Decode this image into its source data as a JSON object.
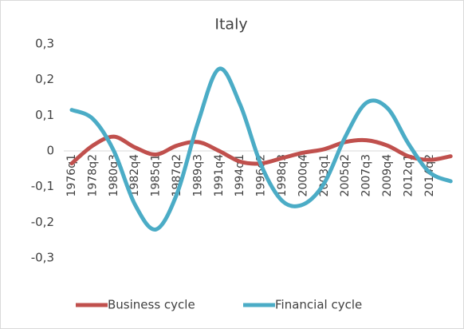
{
  "chart_data": {
    "type": "line",
    "title": "Italy",
    "categories": [
      "1976q1",
      "1978q2",
      "1980q3",
      "1982q4",
      "1985q1",
      "1987q2",
      "1989q3",
      "1991q4",
      "1994q1",
      "1996q2",
      "1998q3",
      "2000q4",
      "2003q1",
      "2005q2",
      "2007q3",
      "2009q4",
      "2012q1",
      "2014q2",
      null
    ],
    "series": [
      {
        "name": "Business cycle",
        "color": "#c0504d",
        "values": [
          -0.035,
          0.015,
          0.04,
          0.01,
          -0.01,
          0.015,
          0.025,
          0.0,
          -0.03,
          -0.035,
          -0.02,
          -0.005,
          0.005,
          0.025,
          0.03,
          0.015,
          -0.015,
          -0.025,
          -0.015
        ]
      },
      {
        "name": "Financial cycle",
        "color": "#4bacc6",
        "values": [
          0.115,
          0.09,
          0.0,
          -0.15,
          -0.22,
          -0.12,
          0.08,
          0.23,
          0.13,
          -0.04,
          -0.14,
          -0.15,
          -0.09,
          0.04,
          0.135,
          0.12,
          0.02,
          -0.06,
          -0.085
        ]
      }
    ],
    "ylim": [
      -0.3,
      0.3
    ],
    "yticks": [
      {
        "value": -0.3,
        "label": "-0,3"
      },
      {
        "value": -0.2,
        "label": "-0,2"
      },
      {
        "value": -0.1,
        "label": "-0,1"
      },
      0,
      {
        "value": 0.1,
        "label": "0,1"
      },
      {
        "value": 0.2,
        "label": "0,2"
      },
      {
        "value": 0.3,
        "label": "0,3"
      }
    ],
    "grid": false,
    "legend": "bottom"
  }
}
